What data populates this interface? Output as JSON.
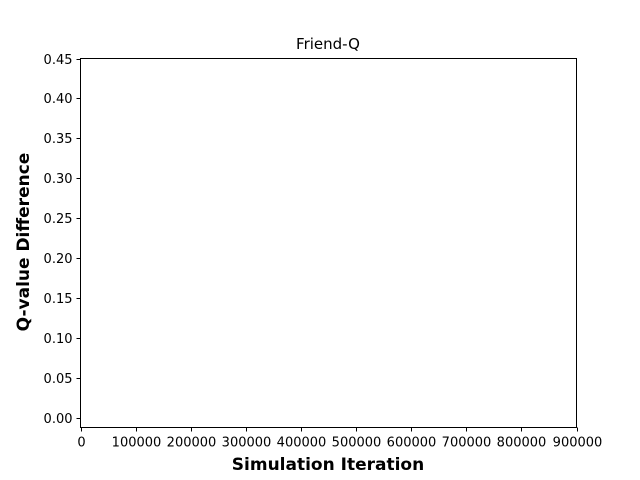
{
  "chart_data": {
    "type": "line",
    "title": "Friend-Q",
    "xlabel": "Simulation Iteration",
    "ylabel": "Q-value Difference",
    "xlim": [
      0,
      900000
    ],
    "ylim": [
      -0.0125,
      0.45
    ],
    "x_ticks": [
      0,
      100000,
      200000,
      300000,
      400000,
      500000,
      600000,
      700000,
      800000,
      900000
    ],
    "x_tick_labels": [
      "0",
      "100000",
      "200000",
      "300000",
      "400000",
      "500000",
      "600000",
      "700000",
      "800000",
      "900000"
    ],
    "y_ticks": [
      0.0,
      0.05,
      0.1,
      0.15,
      0.2,
      0.25,
      0.3,
      0.35,
      0.4,
      0.45
    ],
    "y_tick_labels": [
      "0.00",
      "0.05",
      "0.10",
      "0.15",
      "0.20",
      "0.25",
      "0.30",
      "0.35",
      "0.40",
      "0.45"
    ],
    "grid": false,
    "series": []
  }
}
